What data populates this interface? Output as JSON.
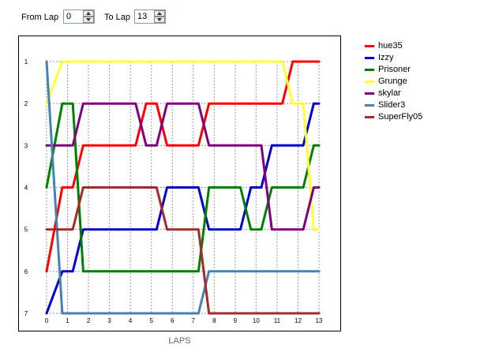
{
  "controls": {
    "from_label": "From Lap",
    "from_value": "0",
    "to_label": "To Lap",
    "to_value": "13"
  },
  "chart_data": {
    "type": "line",
    "xlabel": "LAPS",
    "x": [
      0,
      1,
      2,
      3,
      4,
      5,
      6,
      7,
      8,
      9,
      10,
      11,
      12,
      13
    ],
    "xlim": [
      0,
      13
    ],
    "ylim": [
      1,
      7
    ],
    "y_inverted": true,
    "y_ticks": [
      1,
      2,
      3,
      4,
      5,
      6,
      7
    ],
    "grid": true,
    "legend": "right",
    "series": [
      {
        "name": "hue35",
        "color": "#ff0000",
        "values": [
          6,
          4,
          3,
          3,
          3,
          2,
          3,
          3,
          2,
          2,
          2,
          2,
          1,
          1
        ]
      },
      {
        "name": "Izzy",
        "color": "#0000cc",
        "values": [
          7,
          6,
          5,
          5,
          5,
          5,
          4,
          4,
          5,
          5,
          4,
          3,
          3,
          2
        ]
      },
      {
        "name": "Prisoner",
        "color": "#008000",
        "values": [
          4,
          2,
          6,
          6,
          6,
          6,
          6,
          6,
          4,
          4,
          5,
          4,
          4,
          3
        ]
      },
      {
        "name": "Grunge",
        "color": "#ffff33",
        "values": [
          2,
          1,
          1,
          1,
          1,
          1,
          1,
          1,
          1,
          1,
          1,
          1,
          2,
          5
        ]
      },
      {
        "name": "skylar",
        "color": "#800080",
        "values": [
          3,
          3,
          2,
          2,
          2,
          3,
          2,
          2,
          3,
          3,
          3,
          5,
          5,
          4
        ]
      },
      {
        "name": "Slider3",
        "color": "#4682b4",
        "values": [
          1,
          7,
          7,
          7,
          7,
          7,
          7,
          7,
          6,
          6,
          6,
          6,
          6,
          6
        ]
      },
      {
        "name": "SuperFly05",
        "color": "#a52a2a",
        "values": [
          5,
          5,
          4,
          4,
          4,
          4,
          5,
          5,
          7,
          7,
          7,
          7,
          7,
          7
        ]
      }
    ]
  }
}
